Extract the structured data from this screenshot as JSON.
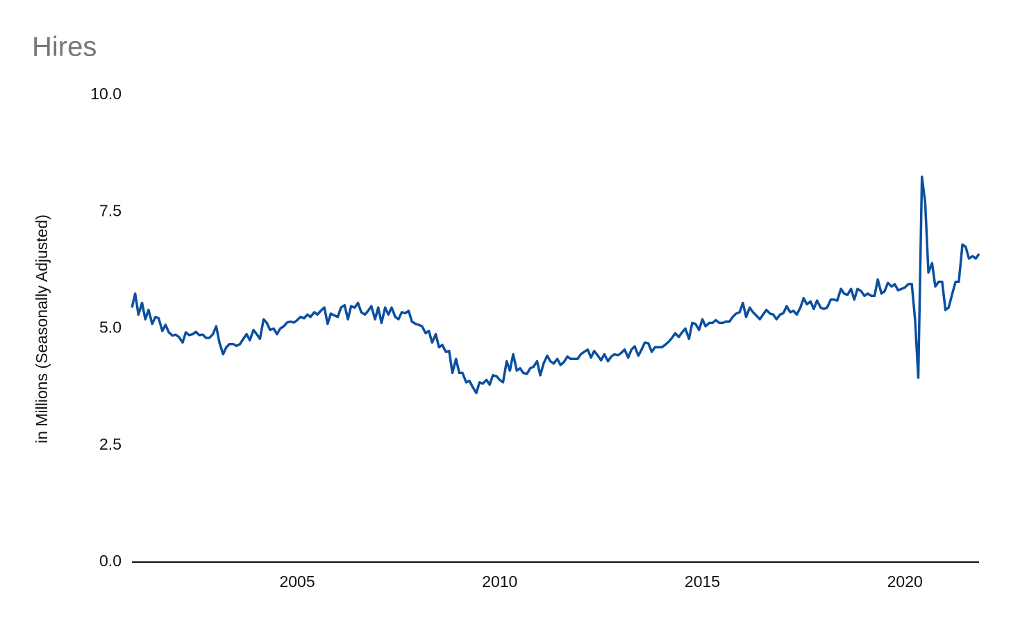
{
  "chart_data": {
    "type": "line",
    "title": "Hires",
    "ylabel": "in Millions (Seasonally Adjusted)",
    "color": "#0b4f9f",
    "xlim": [
      2000.92,
      2021.83
    ],
    "xticks": [
      2005,
      2010,
      2015,
      2020
    ],
    "ylim": [
      0,
      10
    ],
    "yticks": [
      {
        "value": 0,
        "label": "0.0"
      },
      {
        "value": 2.5,
        "label": "2.5"
      },
      {
        "value": 5,
        "label": "5.0"
      },
      {
        "value": 7.5,
        "label": "7.5"
      },
      {
        "value": 10,
        "label": "10.0"
      }
    ],
    "grid": false,
    "x": [
      2000.92,
      2001,
      2001.08,
      2001.17,
      2001.25,
      2001.33,
      2001.42,
      2001.5,
      2001.58,
      2001.67,
      2001.75,
      2001.83,
      2001.92,
      2002,
      2002.08,
      2002.17,
      2002.25,
      2002.33,
      2002.42,
      2002.5,
      2002.58,
      2002.67,
      2002.75,
      2002.83,
      2002.92,
      2003,
      2003.08,
      2003.17,
      2003.25,
      2003.33,
      2003.42,
      2003.5,
      2003.58,
      2003.67,
      2003.75,
      2003.83,
      2003.92,
      2004,
      2004.08,
      2004.17,
      2004.25,
      2004.33,
      2004.42,
      2004.5,
      2004.58,
      2004.67,
      2004.75,
      2004.83,
      2004.92,
      2005,
      2005.08,
      2005.17,
      2005.25,
      2005.33,
      2005.42,
      2005.5,
      2005.58,
      2005.67,
      2005.75,
      2005.83,
      2005.92,
      2006,
      2006.08,
      2006.17,
      2006.25,
      2006.33,
      2006.42,
      2006.5,
      2006.58,
      2006.67,
      2006.75,
      2006.83,
      2006.92,
      2007,
      2007.08,
      2007.17,
      2007.25,
      2007.33,
      2007.42,
      2007.5,
      2007.58,
      2007.67,
      2007.75,
      2007.83,
      2007.92,
      2008,
      2008.08,
      2008.17,
      2008.25,
      2008.33,
      2008.42,
      2008.5,
      2008.58,
      2008.67,
      2008.75,
      2008.83,
      2008.92,
      2009,
      2009.08,
      2009.17,
      2009.25,
      2009.33,
      2009.42,
      2009.5,
      2009.58,
      2009.67,
      2009.75,
      2009.83,
      2009.92,
      2010,
      2010.08,
      2010.17,
      2010.25,
      2010.33,
      2010.42,
      2010.5,
      2010.58,
      2010.67,
      2010.75,
      2010.83,
      2010.92,
      2011,
      2011.08,
      2011.17,
      2011.25,
      2011.33,
      2011.42,
      2011.5,
      2011.58,
      2011.67,
      2011.75,
      2011.83,
      2011.92,
      2012,
      2012.08,
      2012.17,
      2012.25,
      2012.33,
      2012.42,
      2012.5,
      2012.58,
      2012.67,
      2012.75,
      2012.83,
      2012.92,
      2013,
      2013.08,
      2013.17,
      2013.25,
      2013.33,
      2013.42,
      2013.5,
      2013.58,
      2013.67,
      2013.75,
      2013.83,
      2013.92,
      2014,
      2014.08,
      2014.17,
      2014.25,
      2014.33,
      2014.42,
      2014.5,
      2014.58,
      2014.67,
      2014.75,
      2014.83,
      2014.92,
      2015,
      2015.08,
      2015.17,
      2015.25,
      2015.33,
      2015.42,
      2015.5,
      2015.58,
      2015.67,
      2015.75,
      2015.83,
      2015.92,
      2016,
      2016.08,
      2016.17,
      2016.25,
      2016.33,
      2016.42,
      2016.5,
      2016.58,
      2016.67,
      2016.75,
      2016.83,
      2016.92,
      2017,
      2017.08,
      2017.17,
      2017.25,
      2017.33,
      2017.42,
      2017.5,
      2017.58,
      2017.67,
      2017.75,
      2017.83,
      2017.92,
      2018,
      2018.08,
      2018.17,
      2018.25,
      2018.33,
      2018.42,
      2018.5,
      2018.58,
      2018.67,
      2018.75,
      2018.83,
      2018.92,
      2019,
      2019.08,
      2019.17,
      2019.25,
      2019.33,
      2019.42,
      2019.5,
      2019.58,
      2019.67,
      2019.75,
      2019.83,
      2019.92,
      2020,
      2020.08,
      2020.17,
      2020.25,
      2020.33,
      2020.42,
      2020.5,
      2020.58,
      2020.67,
      2020.75,
      2020.83,
      2020.92,
      2021,
      2021.08,
      2021.17,
      2021.25,
      2021.33,
      2021.42,
      2021.5,
      2021.58,
      2021.67,
      2021.75,
      2021.83
    ],
    "values": [
      5.45,
      5.75,
      5.3,
      5.55,
      5.2,
      5.4,
      5.1,
      5.25,
      5.22,
      4.95,
      5.08,
      4.92,
      4.85,
      4.87,
      4.82,
      4.7,
      4.92,
      4.86,
      4.88,
      4.93,
      4.86,
      4.87,
      4.8,
      4.8,
      4.88,
      5.05,
      4.7,
      4.45,
      4.6,
      4.67,
      4.67,
      4.63,
      4.66,
      4.78,
      4.88,
      4.75,
      4.97,
      4.88,
      4.78,
      5.2,
      5.12,
      4.97,
      5.0,
      4.88,
      5.0,
      5.05,
      5.13,
      5.15,
      5.13,
      5.18,
      5.25,
      5.22,
      5.3,
      5.25,
      5.35,
      5.3,
      5.38,
      5.45,
      5.1,
      5.32,
      5.28,
      5.25,
      5.45,
      5.5,
      5.2,
      5.48,
      5.45,
      5.55,
      5.35,
      5.3,
      5.38,
      5.48,
      5.2,
      5.45,
      5.12,
      5.45,
      5.3,
      5.45,
      5.25,
      5.2,
      5.35,
      5.33,
      5.38,
      5.15,
      5.1,
      5.08,
      5.05,
      4.9,
      4.95,
      4.7,
      4.88,
      4.6,
      4.65,
      4.5,
      4.52,
      4.05,
      4.35,
      4.05,
      4.05,
      3.85,
      3.88,
      3.75,
      3.62,
      3.85,
      3.82,
      3.9,
      3.8,
      4.0,
      3.98,
      3.9,
      3.85,
      4.3,
      4.1,
      4.45,
      4.1,
      4.15,
      4.05,
      4.03,
      4.15,
      4.18,
      4.3,
      4.0,
      4.25,
      4.42,
      4.3,
      4.25,
      4.35,
      4.22,
      4.28,
      4.4,
      4.35,
      4.35,
      4.35,
      4.45,
      4.5,
      4.55,
      4.38,
      4.52,
      4.42,
      4.32,
      4.45,
      4.3,
      4.4,
      4.45,
      4.43,
      4.48,
      4.55,
      4.38,
      4.55,
      4.62,
      4.42,
      4.55,
      4.7,
      4.68,
      4.5,
      4.6,
      4.6,
      4.6,
      4.65,
      4.72,
      4.8,
      4.9,
      4.82,
      4.92,
      5.0,
      4.78,
      5.12,
      5.1,
      4.97,
      5.2,
      5.05,
      5.12,
      5.12,
      5.18,
      5.12,
      5.12,
      5.15,
      5.15,
      5.25,
      5.32,
      5.35,
      5.55,
      5.25,
      5.45,
      5.35,
      5.28,
      5.2,
      5.3,
      5.4,
      5.32,
      5.3,
      5.2,
      5.3,
      5.33,
      5.48,
      5.35,
      5.38,
      5.3,
      5.45,
      5.65,
      5.52,
      5.58,
      5.42,
      5.6,
      5.45,
      5.42,
      5.45,
      5.62,
      5.62,
      5.6,
      5.85,
      5.75,
      5.72,
      5.85,
      5.62,
      5.85,
      5.8,
      5.7,
      5.75,
      5.7,
      5.7,
      6.05,
      5.75,
      5.8,
      5.98,
      5.9,
      5.95,
      5.82,
      5.85,
      5.88,
      5.95,
      5.95,
      5.2,
      3.95,
      8.25,
      7.7,
      6.2,
      6.4,
      5.9,
      6.0,
      6.0,
      5.4,
      5.45,
      5.75,
      6.0,
      6.0,
      6.8,
      6.75,
      6.5,
      6.55,
      6.5,
      6.6
    ]
  }
}
